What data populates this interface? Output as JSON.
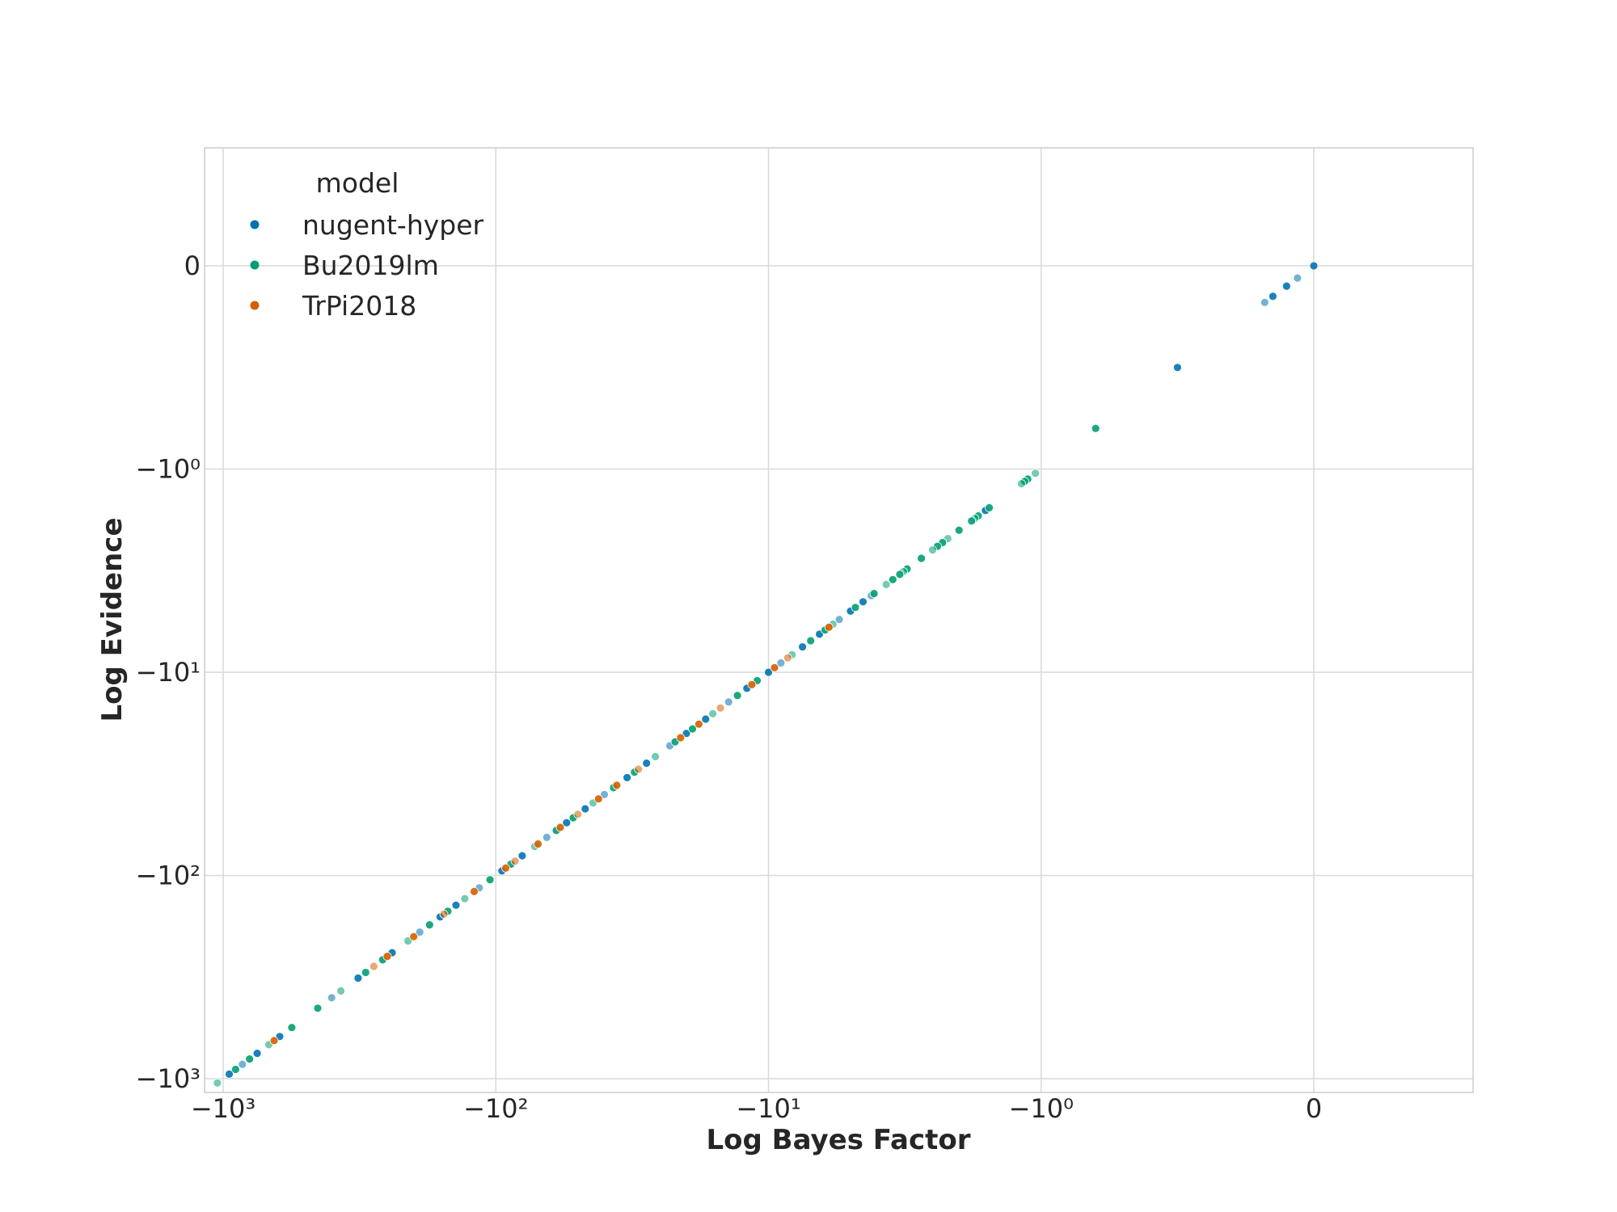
{
  "chart_data": {
    "type": "scatter",
    "xlabel": "Log Bayes Factor",
    "ylabel": "Log Evidence",
    "xscale": "symlog",
    "yscale": "symlog",
    "grid": true,
    "legend": {
      "title": "model",
      "placement": "top-left",
      "entries": [
        "nugent-hyper",
        "Bu2019lm",
        "TrPi2018"
      ]
    },
    "xlim": [
      -1100,
      1000
    ],
    "ylim": [
      -1100,
      1000
    ],
    "x_ticks": [
      {
        "value": -1000,
        "label": "−10³"
      },
      {
        "value": -100,
        "label": "−10²"
      },
      {
        "value": -10,
        "label": "−10¹"
      },
      {
        "value": -1,
        "label": "−10⁰"
      },
      {
        "value": 0,
        "label": "0"
      }
    ],
    "y_ticks": [
      {
        "value": -1000,
        "label": "−10³"
      },
      {
        "value": -100,
        "label": "−10²"
      },
      {
        "value": -10,
        "label": "−10¹"
      },
      {
        "value": -1,
        "label": "−10⁰"
      },
      {
        "value": 0,
        "label": "0"
      }
    ],
    "colors": {
      "nugent-hyper": "#0173b2",
      "Bu2019lm": "#029e73",
      "TrPi2018": "#d55e00"
    },
    "series": [
      {
        "name": "nugent-hyper",
        "points": [
          [
            0,
            0
          ],
          [
            -0.06,
            -0.06
          ],
          [
            -0.1,
            -0.1
          ],
          [
            -0.15,
            -0.15
          ],
          [
            -0.18,
            -0.18
          ],
          [
            -0.5,
            -0.5
          ],
          [
            -1.6,
            -1.6
          ],
          [
            -4.2,
            -4.2
          ],
          [
            -4.5,
            -4.5
          ],
          [
            -5,
            -5
          ],
          [
            -5.5,
            -5.5
          ],
          [
            -6.5,
            -6.5
          ],
          [
            -7.5,
            -7.5
          ],
          [
            -9,
            -9
          ],
          [
            -10,
            -10
          ],
          [
            -12,
            -12
          ],
          [
            -14,
            -14
          ],
          [
            -17,
            -17
          ],
          [
            -20,
            -20
          ],
          [
            -23,
            -23
          ],
          [
            -28,
            -28
          ],
          [
            -33,
            -33
          ],
          [
            -40,
            -40
          ],
          [
            -47,
            -47
          ],
          [
            -55,
            -55
          ],
          [
            -65,
            -65
          ],
          [
            -80,
            -80
          ],
          [
            -95,
            -95
          ],
          [
            -115,
            -115
          ],
          [
            -140,
            -140
          ],
          [
            -160,
            -160
          ],
          [
            -190,
            -190
          ],
          [
            -240,
            -240
          ],
          [
            -320,
            -320
          ],
          [
            -400,
            -400
          ],
          [
            -620,
            -620
          ],
          [
            -750,
            -750
          ],
          [
            -850,
            -850
          ],
          [
            -950,
            -950
          ]
        ]
      },
      {
        "name": "Bu2019lm",
        "points": [
          [
            -0.8,
            -0.8
          ],
          [
            -1.05,
            -1.05
          ],
          [
            -1.12,
            -1.12
          ],
          [
            -1.15,
            -1.15
          ],
          [
            -1.18,
            -1.18
          ],
          [
            -1.55,
            -1.55
          ],
          [
            -1.7,
            -1.7
          ],
          [
            -1.75,
            -1.75
          ],
          [
            -1.8,
            -1.8
          ],
          [
            -2.0,
            -2.0
          ],
          [
            -2.2,
            -2.2
          ],
          [
            -2.3,
            -2.3
          ],
          [
            -2.4,
            -2.4
          ],
          [
            -2.5,
            -2.5
          ],
          [
            -2.75,
            -2.75
          ],
          [
            -3.1,
            -3.1
          ],
          [
            -3.2,
            -3.2
          ],
          [
            -3.3,
            -3.3
          ],
          [
            -3.5,
            -3.5
          ],
          [
            -3.7,
            -3.7
          ],
          [
            -4.1,
            -4.1
          ],
          [
            -4.8,
            -4.8
          ],
          [
            -5.8,
            -5.8
          ],
          [
            -6.2,
            -6.2
          ],
          [
            -7,
            -7
          ],
          [
            -8.2,
            -8.2
          ],
          [
            -11,
            -11
          ],
          [
            -13,
            -13
          ],
          [
            -16,
            -16
          ],
          [
            -19,
            -19
          ],
          [
            -22,
            -22
          ],
          [
            -26,
            -26
          ],
          [
            -31,
            -31
          ],
          [
            -37,
            -37
          ],
          [
            -44,
            -44
          ],
          [
            -52,
            -52
          ],
          [
            -60,
            -60
          ],
          [
            -72,
            -72
          ],
          [
            -88,
            -88
          ],
          [
            -105,
            -105
          ],
          [
            -130,
            -130
          ],
          [
            -150,
            -150
          ],
          [
            -175,
            -175
          ],
          [
            -210,
            -210
          ],
          [
            -260,
            -260
          ],
          [
            -300,
            -300
          ],
          [
            -370,
            -370
          ],
          [
            -450,
            -450
          ],
          [
            -560,
            -560
          ],
          [
            -680,
            -680
          ],
          [
            -800,
            -800
          ],
          [
            -900,
            -900
          ],
          [
            -1050,
            -1050
          ]
        ]
      },
      {
        "name": "TrPi2018",
        "points": [
          [
            -6,
            -6
          ],
          [
            -8.5,
            -8.5
          ],
          [
            -9.5,
            -9.5
          ],
          [
            -11.5,
            -11.5
          ],
          [
            -15,
            -15
          ],
          [
            -18,
            -18
          ],
          [
            -21,
            -21
          ],
          [
            -30,
            -30
          ],
          [
            -36,
            -36
          ],
          [
            -42,
            -42
          ],
          [
            -50,
            -50
          ],
          [
            -58,
            -58
          ],
          [
            -70,
            -70
          ],
          [
            -85,
            -85
          ],
          [
            -92,
            -92
          ],
          [
            -120,
            -120
          ],
          [
            -155,
            -155
          ],
          [
            -200,
            -200
          ],
          [
            -250,
            -250
          ],
          [
            -280,
            -280
          ],
          [
            -650,
            -650
          ]
        ]
      }
    ]
  }
}
